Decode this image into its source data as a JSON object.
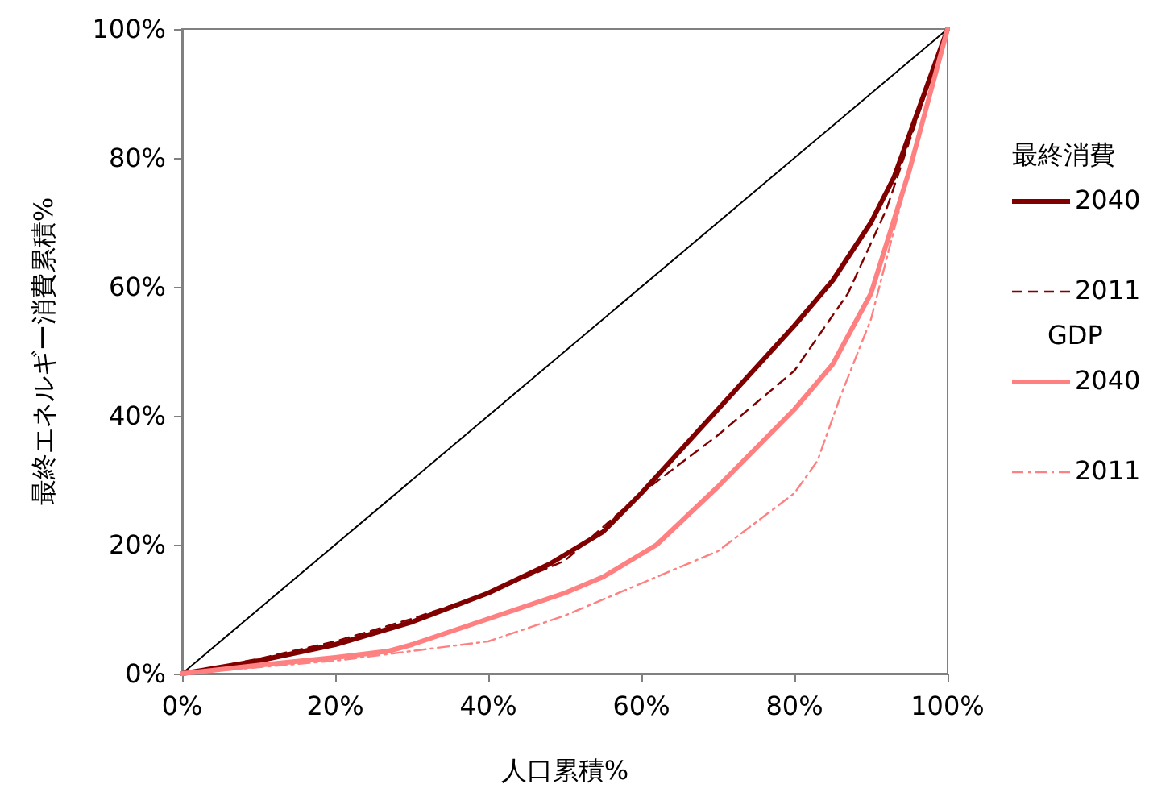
{
  "chart_data": {
    "type": "line",
    "xlabel": "人口累積%",
    "ylabel": "最終エネルギー消費累積%",
    "xlim": [
      0,
      100
    ],
    "ylim": [
      0,
      100
    ],
    "xticks": [
      {
        "value": 0,
        "label": "0%"
      },
      {
        "value": 20,
        "label": "20%"
      },
      {
        "value": 40,
        "label": "40%"
      },
      {
        "value": 60,
        "label": "60%"
      },
      {
        "value": 80,
        "label": "80%"
      },
      {
        "value": 100,
        "label": "100%"
      }
    ],
    "yticks": [
      {
        "value": 0,
        "label": "0%"
      },
      {
        "value": 20,
        "label": "20%"
      },
      {
        "value": 40,
        "label": "40%"
      },
      {
        "value": 60,
        "label": "60%"
      },
      {
        "value": 80,
        "label": "80%"
      },
      {
        "value": 100,
        "label": "100%"
      }
    ],
    "grid": false,
    "legend": "right",
    "marker": "none",
    "annotations": [
      "最終消費",
      "GDP"
    ],
    "series": [
      {
        "name": "2040",
        "color": "#800000",
        "line_style": "solid",
        "x": [
          0,
          10,
          20,
          30,
          40,
          48,
          55,
          60,
          70,
          80,
          85,
          90,
          93,
          100
        ],
        "values": [
          0,
          2,
          4.5,
          8,
          12.5,
          17,
          22,
          28,
          41,
          54,
          61,
          70,
          77,
          100
        ]
      },
      {
        "name": "2011",
        "color": "#800000",
        "line_style": "dashed",
        "x": [
          0,
          10,
          20,
          30,
          40,
          50,
          60,
          70,
          80,
          87,
          92,
          100
        ],
        "values": [
          0,
          2.3,
          5,
          8.5,
          12.5,
          17.5,
          28,
          37,
          47,
          59,
          72,
          100
        ]
      },
      {
        "name": "2040",
        "color": "#ff8080",
        "line_style": "solid",
        "x": [
          0,
          10,
          20,
          27,
          30,
          40,
          50,
          55,
          62,
          70,
          80,
          85,
          90,
          95,
          100
        ],
        "values": [
          0,
          1.3,
          2.5,
          3.5,
          4.5,
          8.5,
          12.5,
          15,
          20,
          29,
          41,
          48,
          59,
          78,
          100
        ]
      },
      {
        "name": "2011",
        "color": "#ff8080",
        "line_style": "dashdot",
        "x": [
          0,
          10,
          20,
          30,
          40,
          50,
          60,
          70,
          80,
          83,
          86,
          90,
          95,
          100
        ],
        "values": [
          0,
          1,
          2,
          3.5,
          5,
          9,
          14,
          19,
          28,
          33,
          43,
          55,
          78,
          100
        ]
      },
      {
        "color": "#000000",
        "line_style": "solid",
        "x": [
          0,
          100
        ],
        "values": [
          0,
          100
        ]
      }
    ]
  }
}
